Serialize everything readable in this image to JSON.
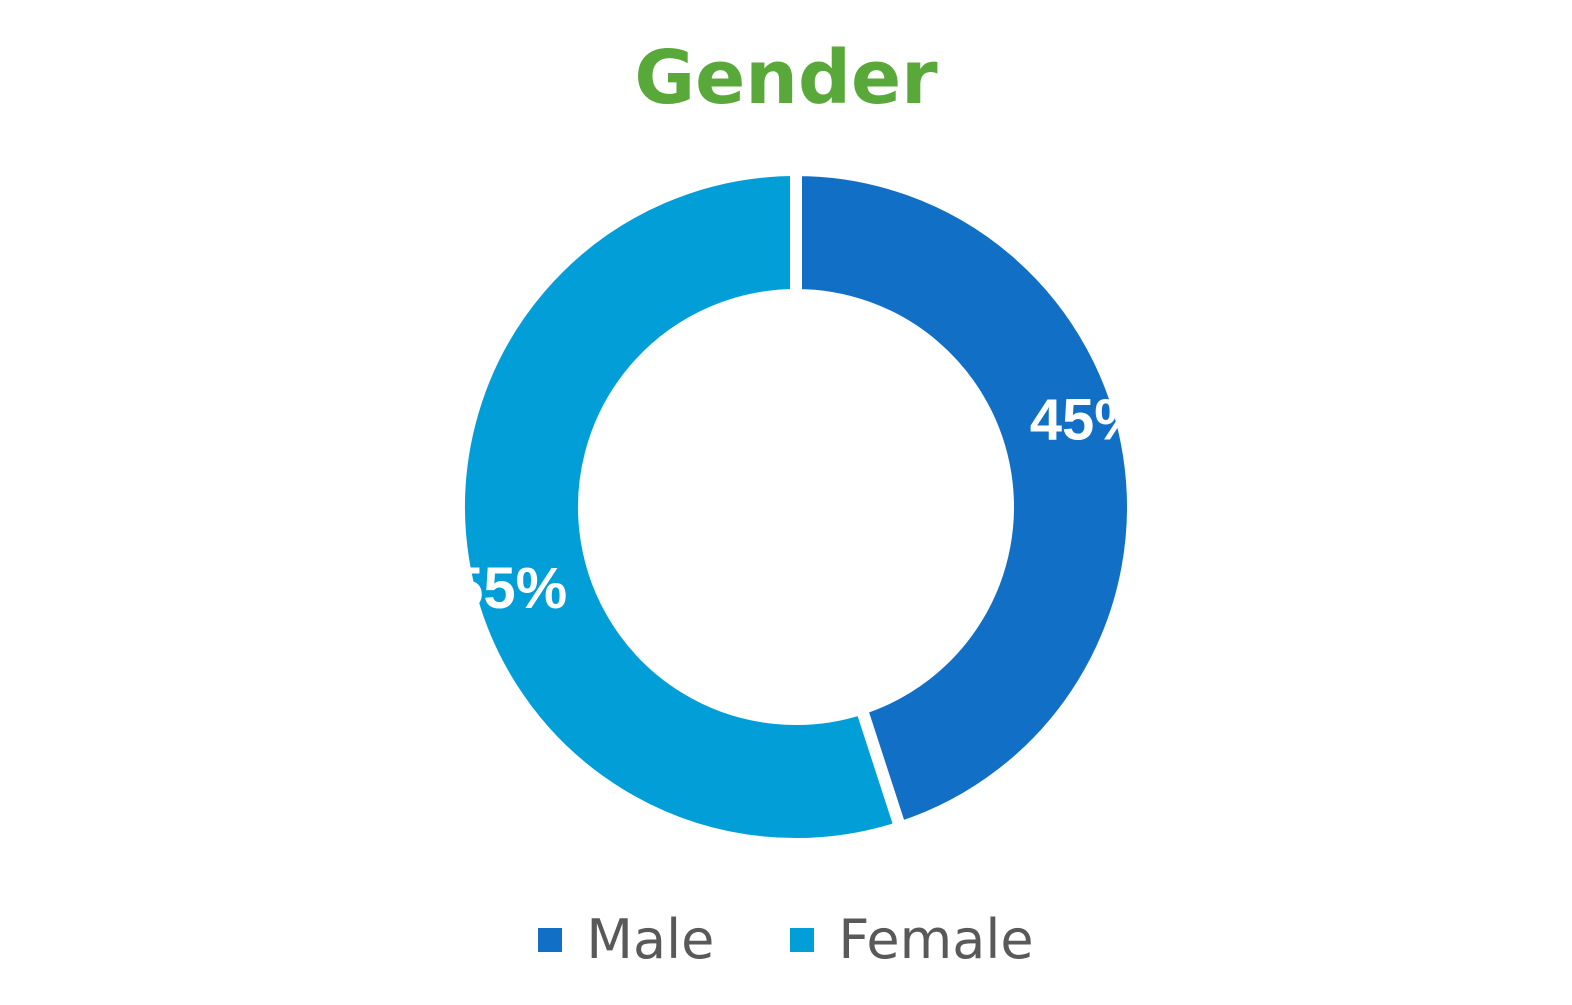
{
  "chart_data": {
    "type": "pie",
    "variant": "donut",
    "title": "Gender",
    "title_color": "#58A83A",
    "series": [
      {
        "name": "Male",
        "value": 45,
        "label": "45%",
        "color": "#1170C6"
      },
      {
        "name": "Female",
        "value": 55,
        "label": "55%",
        "color": "#029ED8"
      }
    ],
    "legend": {
      "position": "bottom",
      "entries": [
        "Male",
        "Female"
      ]
    },
    "data_label_color": "#FFFFFF"
  }
}
